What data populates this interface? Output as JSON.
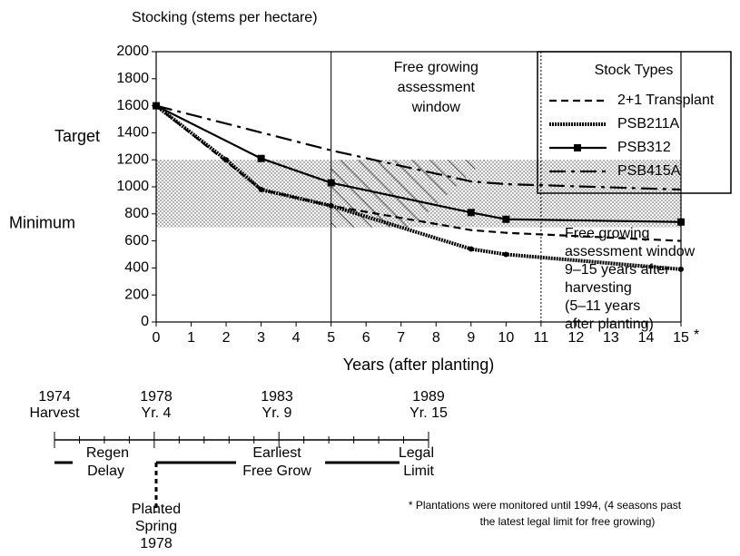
{
  "chart_data": {
    "type": "line",
    "title": "Stocking (stems per hectare)",
    "x_label": "Years (after planting)",
    "x_note_marker": "*",
    "xlim": [
      0,
      15
    ],
    "xticks": [
      0,
      1,
      2,
      3,
      4,
      5,
      6,
      7,
      8,
      9,
      10,
      11,
      12,
      13,
      14,
      15
    ],
    "ylim": [
      0,
      2000
    ],
    "yticks": [
      0,
      200,
      400,
      600,
      800,
      1000,
      1200,
      1400,
      1600,
      1800,
      2000
    ],
    "target_band": [
      700,
      1200
    ],
    "band_labels": [
      "Target",
      "Minimum"
    ],
    "window": [
      5,
      11
    ],
    "window_label": [
      "Free growing",
      "assessment",
      "window"
    ],
    "legend_title": "Stock Types",
    "series": [
      {
        "name": "2+1 Transplant",
        "color": "#000000",
        "style": "dashed",
        "marker": "none",
        "x": [
          0,
          3,
          5,
          9,
          10,
          15
        ],
        "values": [
          1600,
          980,
          860,
          680,
          660,
          600
        ]
      },
      {
        "name": "PSB211A",
        "color": "#000000",
        "style": "dotted",
        "marker": "dot",
        "x": [
          0,
          2,
          3,
          5,
          9,
          10,
          15
        ],
        "values": [
          1600,
          1200,
          980,
          860,
          540,
          500,
          390
        ]
      },
      {
        "name": "PSB312",
        "color": "#000000",
        "style": "solid",
        "marker": "square",
        "x": [
          0,
          3,
          5,
          9,
          10,
          15
        ],
        "values": [
          1600,
          1210,
          1030,
          810,
          760,
          740
        ]
      },
      {
        "name": "PSB415A",
        "color": "#000000",
        "style": "dashdot",
        "marker": "none",
        "x": [
          0,
          5,
          9,
          10,
          15
        ],
        "values": [
          1600,
          1270,
          1040,
          1020,
          980
        ]
      }
    ],
    "side_note": [
      "Free growing",
      "assessment window",
      "9–15 years after",
      "harvesting",
      "(5–11 years",
      "after planting)"
    ],
    "footnote": [
      "* Plantations were monitored until 1994, (4 seasons past",
      "the latest legal limit for free growing)"
    ],
    "timeline": {
      "marks": [
        [
          "1974",
          "Harvest"
        ],
        [
          "1978",
          "Yr. 4"
        ],
        [
          "1983",
          "Yr. 9"
        ],
        [
          "1989",
          "Yr. 15"
        ]
      ],
      "phases": [
        [
          "Regen",
          "Delay"
        ],
        [
          "Earliest",
          "Free Grow"
        ],
        [
          "Legal",
          "Limit"
        ]
      ],
      "planted": [
        "Planted",
        "Spring",
        "1978"
      ]
    }
  }
}
